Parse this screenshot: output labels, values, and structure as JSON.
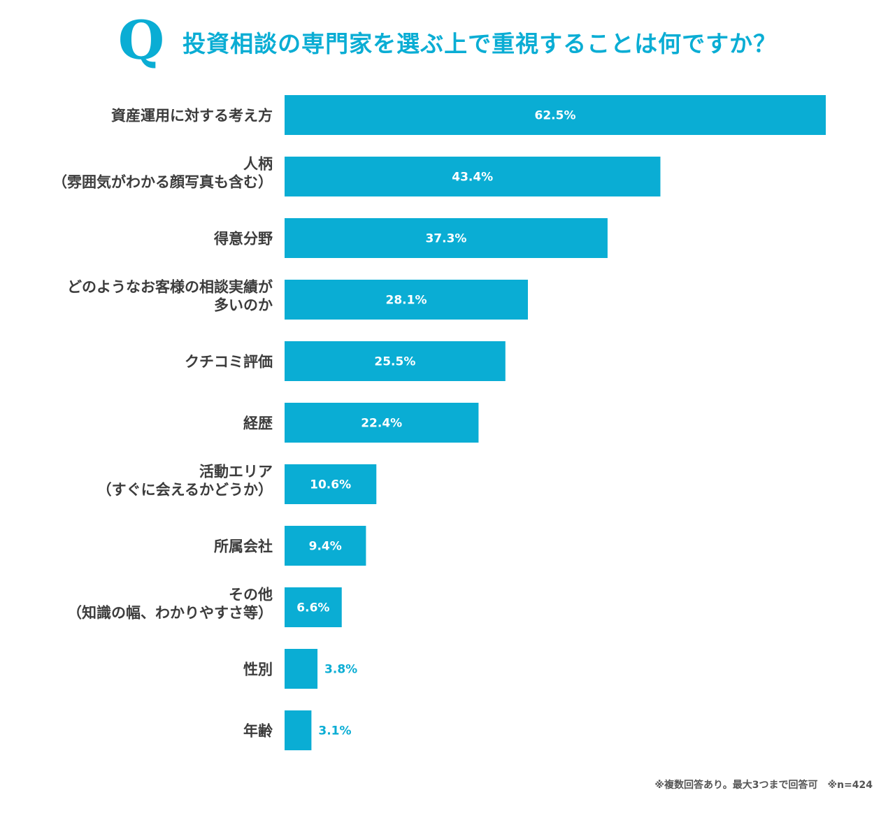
{
  "header": {
    "q_mark": "Q",
    "title": "投資相談の専門家を選ぶ上で重視することは何ですか？"
  },
  "colors": {
    "accent": "#0aadd4",
    "label_text": "#3c3c3c",
    "value_inside": "#ffffff",
    "footnote_text": "#555555"
  },
  "chart_data": {
    "type": "bar",
    "orientation": "horizontal",
    "title": "投資相談の専門家を選ぶ上で重視することは何ですか？",
    "xlabel": "",
    "ylabel": "",
    "xlim": [
      0,
      62.5
    ],
    "unit": "%",
    "grid": false,
    "categories": [
      [
        "資産運用に対する考え方"
      ],
      [
        "人柄",
        "（雰囲気がわかる顔写真も含む）"
      ],
      [
        "得意分野"
      ],
      [
        "どのようなお客様の相談実績が",
        "多いのか"
      ],
      [
        "クチコミ評価"
      ],
      [
        "経歴"
      ],
      [
        "活動エリア",
        "（すぐに会えるかどうか）"
      ],
      [
        "所属会社"
      ],
      [
        "その他",
        "（知識の幅、わかりやすさ等）"
      ],
      [
        "性別"
      ],
      [
        "年齢"
      ]
    ],
    "values": [
      62.5,
      43.4,
      37.3,
      28.1,
      25.5,
      22.4,
      10.6,
      9.4,
      6.6,
      3.8,
      3.1
    ],
    "value_labels": [
      "62.5%",
      "43.4%",
      "37.3%",
      "28.1%",
      "25.5%",
      "22.4%",
      "10.6%",
      "9.4%",
      "6.6%",
      "3.8%",
      "3.1%"
    ]
  },
  "footnote": {
    "text": "※複数回答あり。最大3つまで回答可　※n=424"
  }
}
